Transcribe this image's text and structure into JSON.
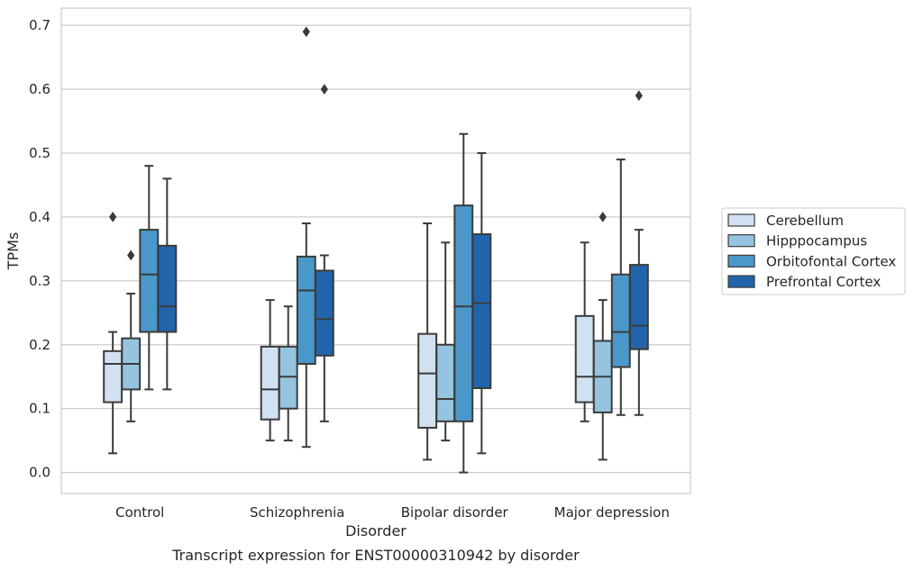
{
  "chart_data": {
    "type": "box",
    "caption": "Transcript expression for ENST00000310942 by disorder",
    "xlabel": "Disorder",
    "ylabel": "TPMs",
    "ylim": [
      -0.033,
      0.727
    ],
    "yticks": [
      0.0,
      0.1,
      0.2,
      0.3,
      0.4,
      0.5,
      0.6,
      0.7
    ],
    "ytick_labels": [
      "0.0",
      "0.1",
      "0.2",
      "0.3",
      "0.4",
      "0.5",
      "0.6",
      "0.7"
    ],
    "grid": true,
    "legend_position": "right",
    "categories": [
      "Control",
      "Schizophrenia",
      "Bipolar disorder",
      "Major depression"
    ],
    "series": [
      {
        "name": "Cerebellum",
        "color": "#d0e1f2",
        "boxes": [
          {
            "whislo": 0.03,
            "q1": 0.11,
            "med": 0.17,
            "q3": 0.19,
            "whishi": 0.22,
            "fliers": [
              0.4
            ]
          },
          {
            "whislo": 0.05,
            "q1": 0.083,
            "med": 0.13,
            "q3": 0.197,
            "whishi": 0.27,
            "fliers": []
          },
          {
            "whislo": 0.02,
            "q1": 0.07,
            "med": 0.155,
            "q3": 0.217,
            "whishi": 0.39,
            "fliers": []
          },
          {
            "whislo": 0.08,
            "q1": 0.11,
            "med": 0.15,
            "q3": 0.245,
            "whishi": 0.36,
            "fliers": []
          }
        ]
      },
      {
        "name": "Hipppocampus",
        "color": "#94c4df",
        "boxes": [
          {
            "whislo": 0.08,
            "q1": 0.13,
            "med": 0.17,
            "q3": 0.21,
            "whishi": 0.28,
            "fliers": [
              0.34
            ]
          },
          {
            "whislo": 0.05,
            "q1": 0.1,
            "med": 0.15,
            "q3": 0.197,
            "whishi": 0.26,
            "fliers": []
          },
          {
            "whislo": 0.05,
            "q1": 0.08,
            "med": 0.115,
            "q3": 0.2,
            "whishi": 0.36,
            "fliers": []
          },
          {
            "whislo": 0.02,
            "q1": 0.094,
            "med": 0.15,
            "q3": 0.206,
            "whishi": 0.27,
            "fliers": [
              0.4
            ]
          }
        ]
      },
      {
        "name": "Orbitofontal Cortex",
        "color": "#4a98c9",
        "boxes": [
          {
            "whislo": 0.13,
            "q1": 0.22,
            "med": 0.31,
            "q3": 0.38,
            "whishi": 0.48,
            "fliers": []
          },
          {
            "whislo": 0.04,
            "q1": 0.17,
            "med": 0.285,
            "q3": 0.338,
            "whishi": 0.39,
            "fliers": [
              0.69
            ]
          },
          {
            "whislo": 0.0,
            "q1": 0.08,
            "med": 0.26,
            "q3": 0.418,
            "whishi": 0.53,
            "fliers": []
          },
          {
            "whislo": 0.09,
            "q1": 0.165,
            "med": 0.22,
            "q3": 0.31,
            "whishi": 0.49,
            "fliers": []
          }
        ]
      },
      {
        "name": "Prefrontal Cortex",
        "color": "#2164ab",
        "boxes": [
          {
            "whislo": 0.13,
            "q1": 0.22,
            "med": 0.26,
            "q3": 0.355,
            "whishi": 0.46,
            "fliers": []
          },
          {
            "whislo": 0.08,
            "q1": 0.183,
            "med": 0.24,
            "q3": 0.316,
            "whishi": 0.34,
            "fliers": [
              0.6
            ]
          },
          {
            "whislo": 0.03,
            "q1": 0.132,
            "med": 0.265,
            "q3": 0.373,
            "whishi": 0.5,
            "fliers": []
          },
          {
            "whislo": 0.09,
            "q1": 0.193,
            "med": 0.23,
            "q3": 0.325,
            "whishi": 0.38,
            "fliers": [
              0.59
            ]
          }
        ]
      }
    ]
  }
}
